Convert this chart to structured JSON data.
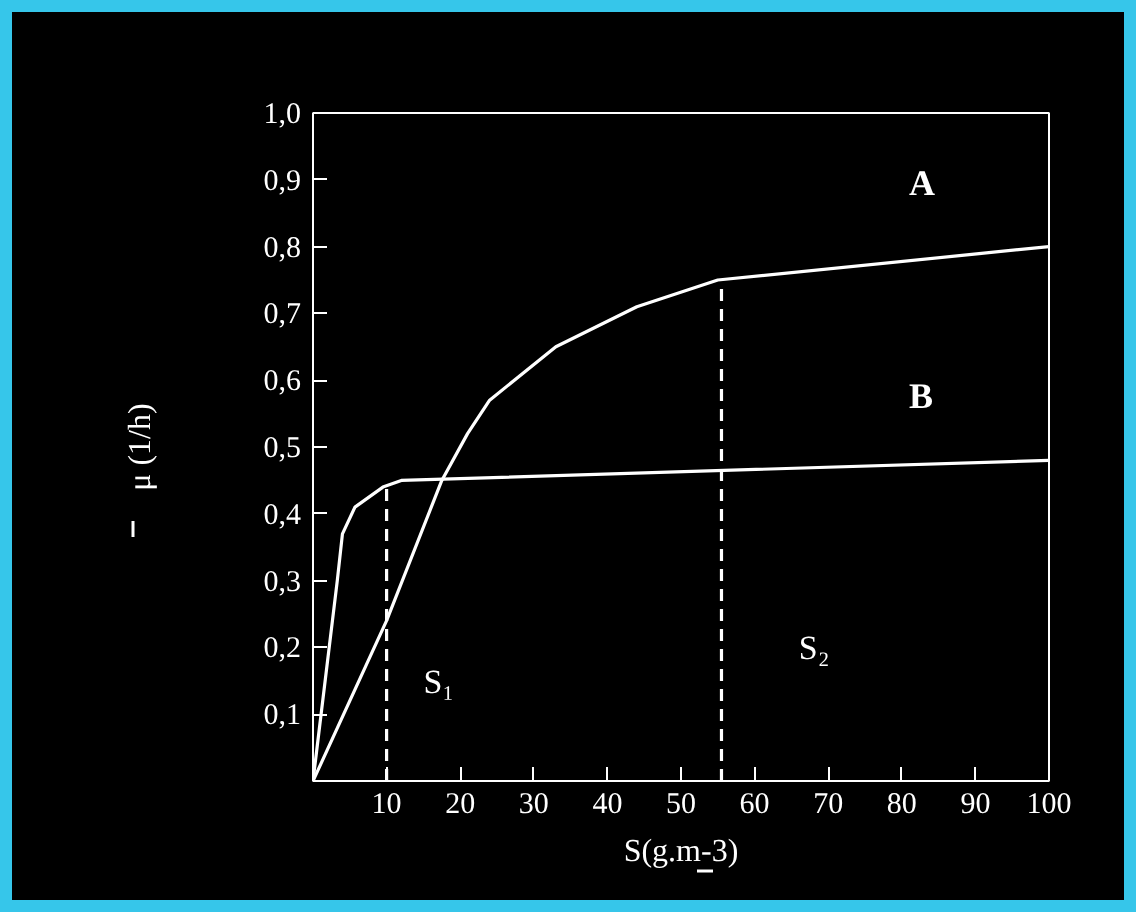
{
  "chart_data": {
    "type": "line",
    "xlabel": "S(g.m-3)",
    "ylabel": "μ (1/h)",
    "xlim": [
      0,
      100
    ],
    "ylim": [
      0,
      1.0
    ],
    "xticks": [
      10,
      20,
      30,
      40,
      50,
      60,
      70,
      80,
      90,
      100
    ],
    "yticks": [
      {
        "value": 0.1,
        "label": "0,1"
      },
      {
        "value": 0.2,
        "label": "0,2"
      },
      {
        "value": 0.3,
        "label": "0,3"
      },
      {
        "value": 0.4,
        "label": "0,4"
      },
      {
        "value": 0.5,
        "label": "0,5"
      },
      {
        "value": 0.6,
        "label": "0,6"
      },
      {
        "value": 0.7,
        "label": "0,7"
      },
      {
        "value": 0.8,
        "label": "0,8"
      },
      {
        "value": 0.9,
        "label": "0,9"
      },
      {
        "value": 1.0,
        "label": "1,0"
      }
    ],
    "grid": false,
    "marker": "none",
    "series": [
      {
        "name": "A",
        "color": "#ffffff",
        "x": [
          0,
          10,
          17.5,
          21,
          24,
          33,
          44,
          55,
          100
        ],
        "values": [
          0,
          0.24,
          0.45,
          0.52,
          0.57,
          0.65,
          0.71,
          0.75,
          0.8
        ]
      },
      {
        "name": "B",
        "color": "#ffffff",
        "x": [
          0,
          3.3,
          4,
          5.7,
          9.5,
          12,
          100
        ],
        "values": [
          0,
          0.3,
          0.37,
          0.41,
          0.44,
          0.45,
          0.48
        ]
      },
      {
        "color": "#ffffff",
        "line_style": "dashed",
        "x": [
          10,
          10
        ],
        "values": [
          0,
          0.44
        ]
      },
      {
        "color": "#ffffff",
        "line_style": "dashed",
        "x": [
          55.5,
          55.5
        ],
        "values": [
          0,
          0.75
        ]
      }
    ],
    "annotations": [
      "S₁",
      "S₂"
    ]
  }
}
